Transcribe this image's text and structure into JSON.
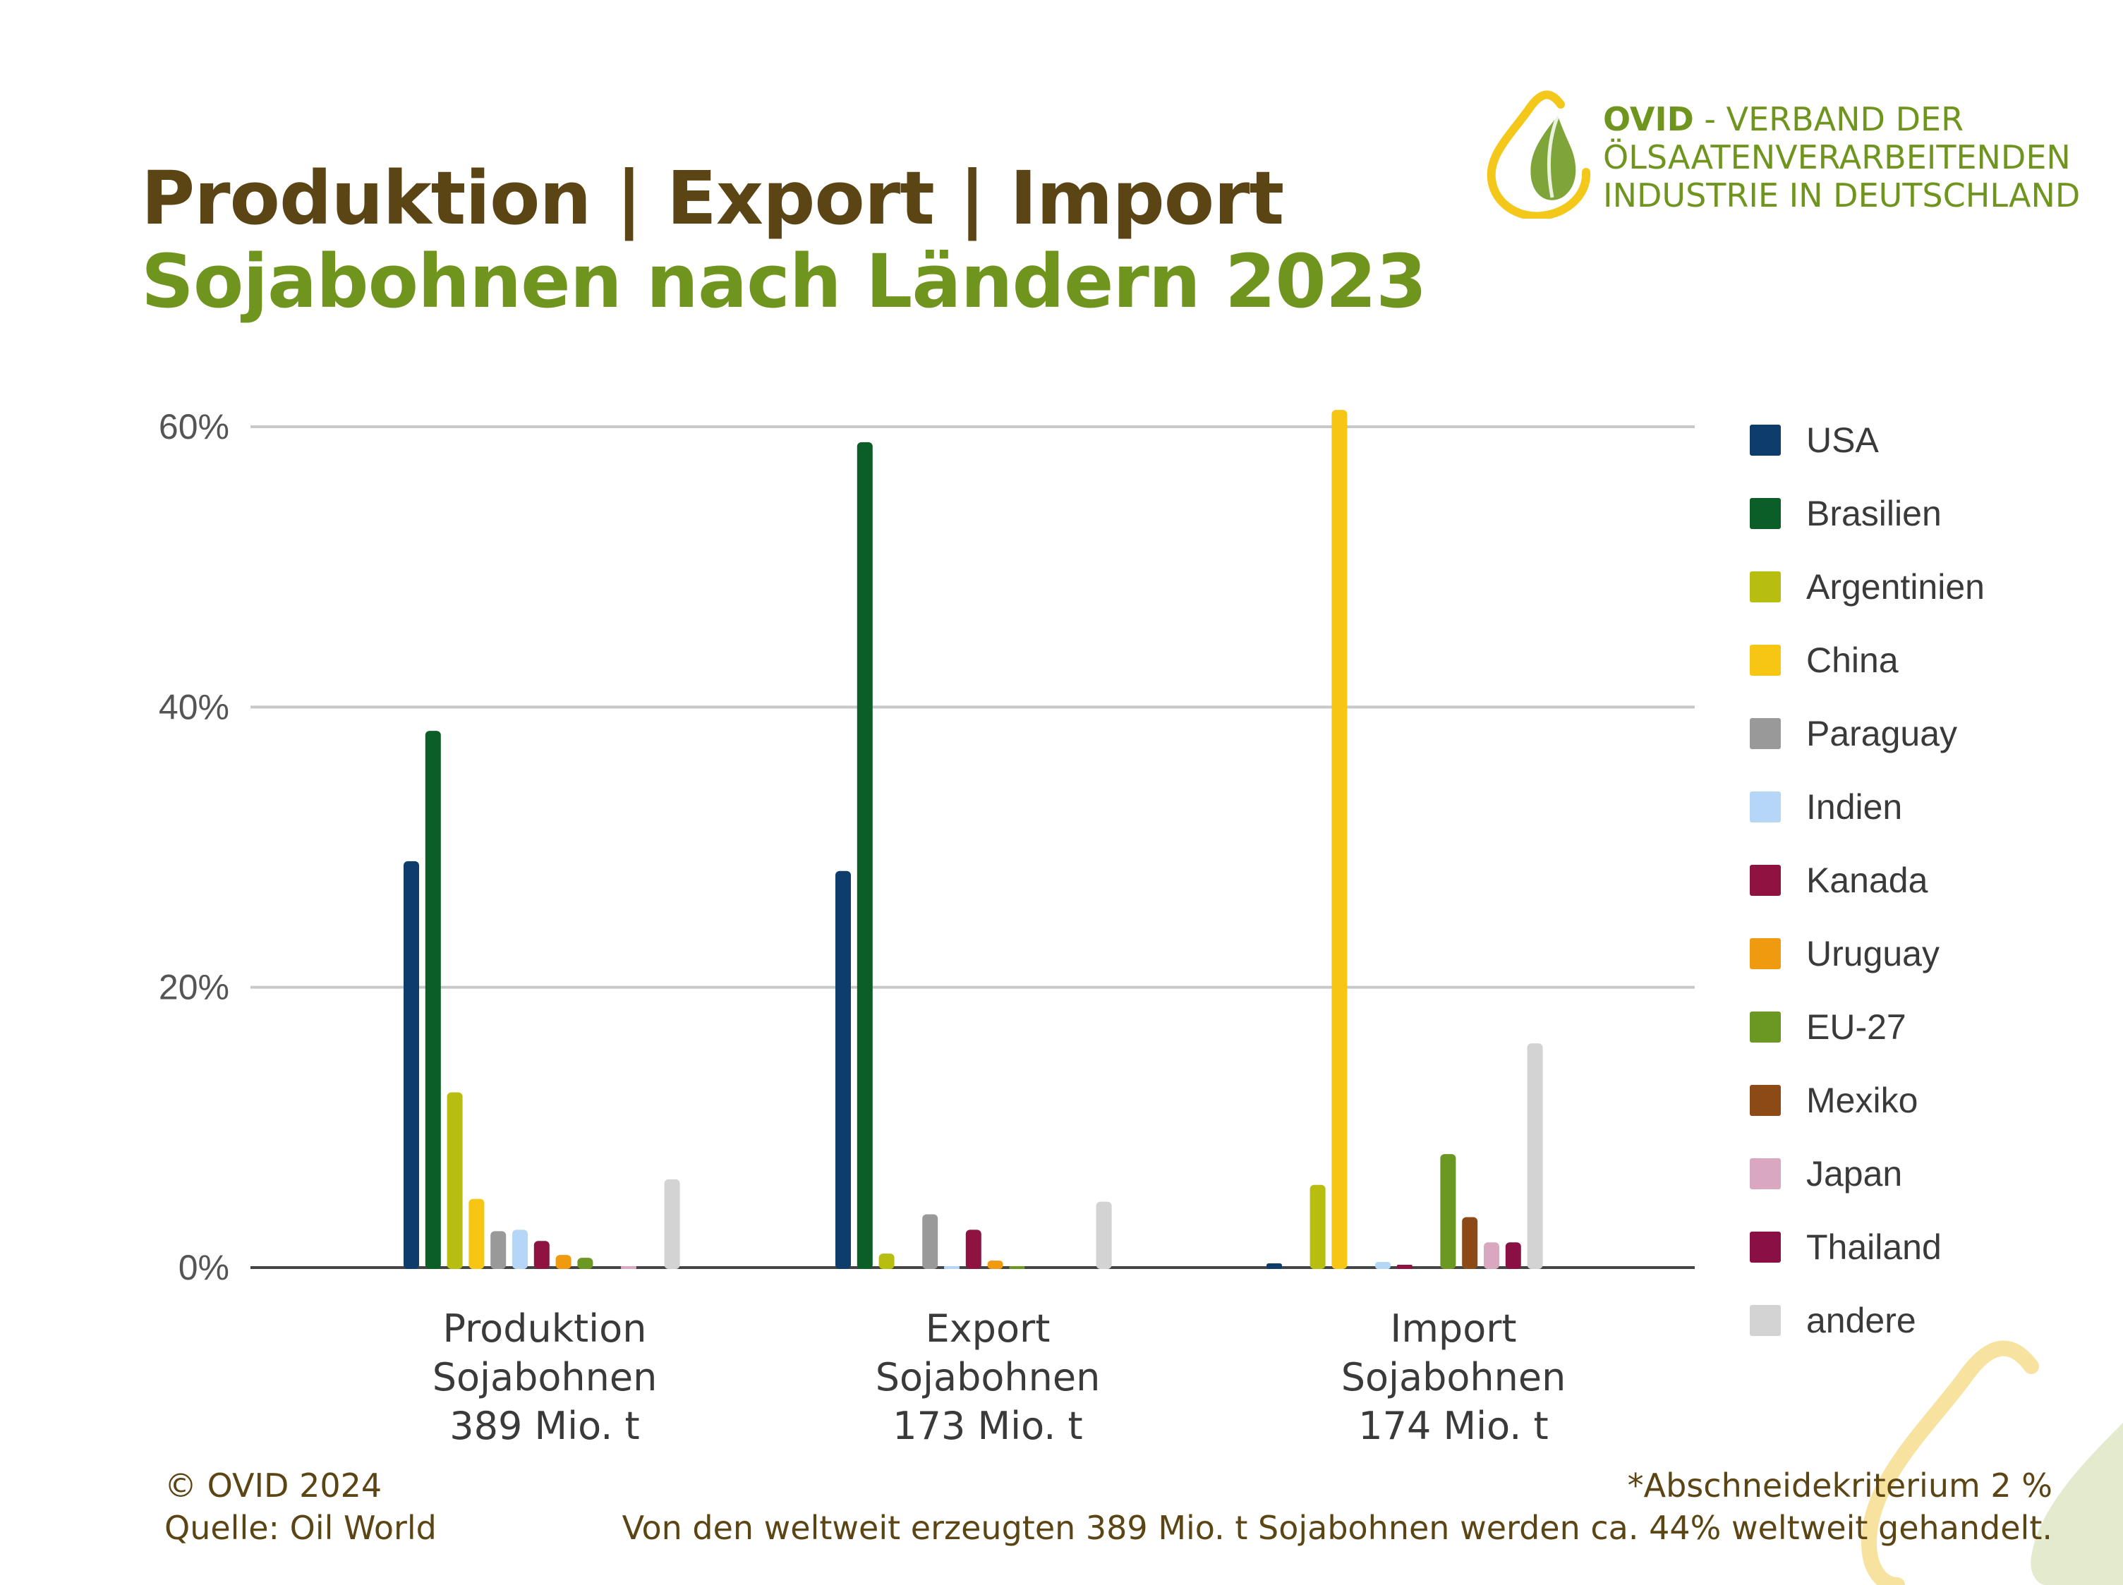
{
  "header": {
    "title": "Produktion | Export | Import",
    "subtitle": "Sojabohnen nach Ländern 2023"
  },
  "logo": {
    "brand": "OVID",
    "line1": " - VERBAND DER",
    "line2": "ÖLSAATENVERARBEITENDEN",
    "line3": "INDUSTRIE IN DEUTSCHLAND"
  },
  "chart_data": {
    "type": "bar",
    "categories": [
      [
        "Produktion",
        "Sojabohnen",
        "389 Mio. t"
      ],
      [
        "Export",
        "Sojabohnen",
        "173 Mio. t"
      ],
      [
        "Import",
        "Sojabohnen",
        "174 Mio. t"
      ]
    ],
    "yticks": [
      "0%",
      "20%",
      "40%",
      "60%"
    ],
    "ylim": [
      0,
      62
    ],
    "grid": true,
    "legend_position": "right",
    "series": [
      {
        "name": "USA",
        "color": "#0e3d6b",
        "values": [
          29.0,
          28.3,
          0.3
        ]
      },
      {
        "name": "Brasilien",
        "color": "#0b5e26",
        "values": [
          38.3,
          58.9,
          0
        ]
      },
      {
        "name": "Argentinien",
        "color": "#b8be0f",
        "values": [
          12.5,
          1.0,
          5.9
        ]
      },
      {
        "name": "China",
        "color": "#f7c614",
        "values": [
          4.9,
          0,
          61.2
        ]
      },
      {
        "name": "Paraguay",
        "color": "#999999",
        "values": [
          2.6,
          3.8,
          0
        ]
      },
      {
        "name": "Indien",
        "color": "#b6d6f7",
        "values": [
          2.7,
          0.1,
          0.4
        ]
      },
      {
        "name": "Kanada",
        "color": "#8e1340",
        "values": [
          1.9,
          2.7,
          0.2
        ]
      },
      {
        "name": "Uruguay",
        "color": "#f09a10",
        "values": [
          0.9,
          0.5,
          0
        ]
      },
      {
        "name": "EU-27",
        "color": "#6a9822",
        "values": [
          0.7,
          0.1,
          8.1
        ]
      },
      {
        "name": "Mexiko",
        "color": "#8c4b16",
        "values": [
          0,
          0,
          3.6
        ]
      },
      {
        "name": "Japan",
        "color": "#d9a8c0",
        "values": [
          0.1,
          0,
          1.8
        ]
      },
      {
        "name": "Thailand",
        "color": "#8a0f44",
        "values": [
          0,
          0,
          1.8
        ]
      },
      {
        "name": "andere",
        "color": "#d3d3d3",
        "values": [
          6.3,
          4.7,
          16.0
        ]
      }
    ]
  },
  "footer": {
    "copyright": "© OVID 2024",
    "source": "Quelle: Oil World",
    "note1": "*Abschneidekriterium 2 %",
    "note2": "Von den weltweit erzeugten 389 Mio. t  Sojabohnen werden ca. 44% weltweit gehandelt."
  }
}
